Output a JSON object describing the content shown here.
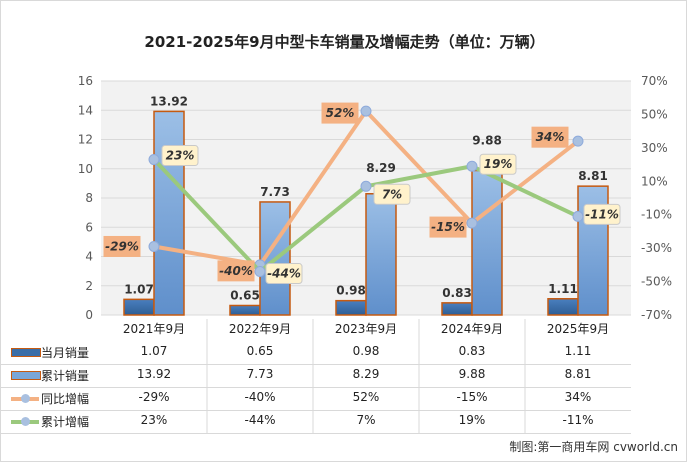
{
  "chart_data": {
    "type": "bar+line",
    "title": "2021-2025年9月中型卡车销量及增幅走势（单位：万辆）",
    "categories": [
      "2021年9月",
      "2022年9月",
      "2023年9月",
      "2024年9月",
      "2025年9月"
    ],
    "left_axis": {
      "ylim": [
        0,
        16
      ],
      "ticks": [
        "0",
        "2",
        "4",
        "6",
        "8",
        "10",
        "12",
        "14",
        "16"
      ]
    },
    "right_axis": {
      "ylim": [
        -70,
        70
      ],
      "ticks": [
        "-70%",
        "-50%",
        "-30%",
        "-10%",
        "10%",
        "30%",
        "50%",
        "70%"
      ]
    },
    "grid": true,
    "legend": "data-table",
    "series": [
      {
        "name": "当月销量",
        "type": "bar",
        "values": [
          1.07,
          0.65,
          0.98,
          0.83,
          1.11
        ],
        "labels": [
          "1.07",
          "0.65",
          "0.98",
          "0.83",
          "1.11"
        ],
        "color": "#3a6ea8"
      },
      {
        "name": "累计销量",
        "type": "bar",
        "values": [
          13.92,
          7.73,
          8.29,
          9.88,
          8.81
        ],
        "labels": [
          "13.92",
          "7.73",
          "8.29",
          "9.88",
          "8.81"
        ],
        "color": "#7aa6d8"
      },
      {
        "name": "同比增幅",
        "type": "line",
        "axis": "right",
        "values": [
          -29,
          -40,
          52,
          -15,
          34
        ],
        "labels": [
          "-29%",
          "-40%",
          "52%",
          "-15%",
          "34%"
        ],
        "color": "#f4b183"
      },
      {
        "name": "累计增幅",
        "type": "line",
        "axis": "right",
        "values": [
          23,
          -44,
          7,
          19,
          -11
        ],
        "labels": [
          "23%",
          "-44%",
          "7%",
          "19%",
          "-11%"
        ],
        "color": "#9bc97d"
      }
    ]
  },
  "source": "制图:第一商用车网 cvworld.cn"
}
